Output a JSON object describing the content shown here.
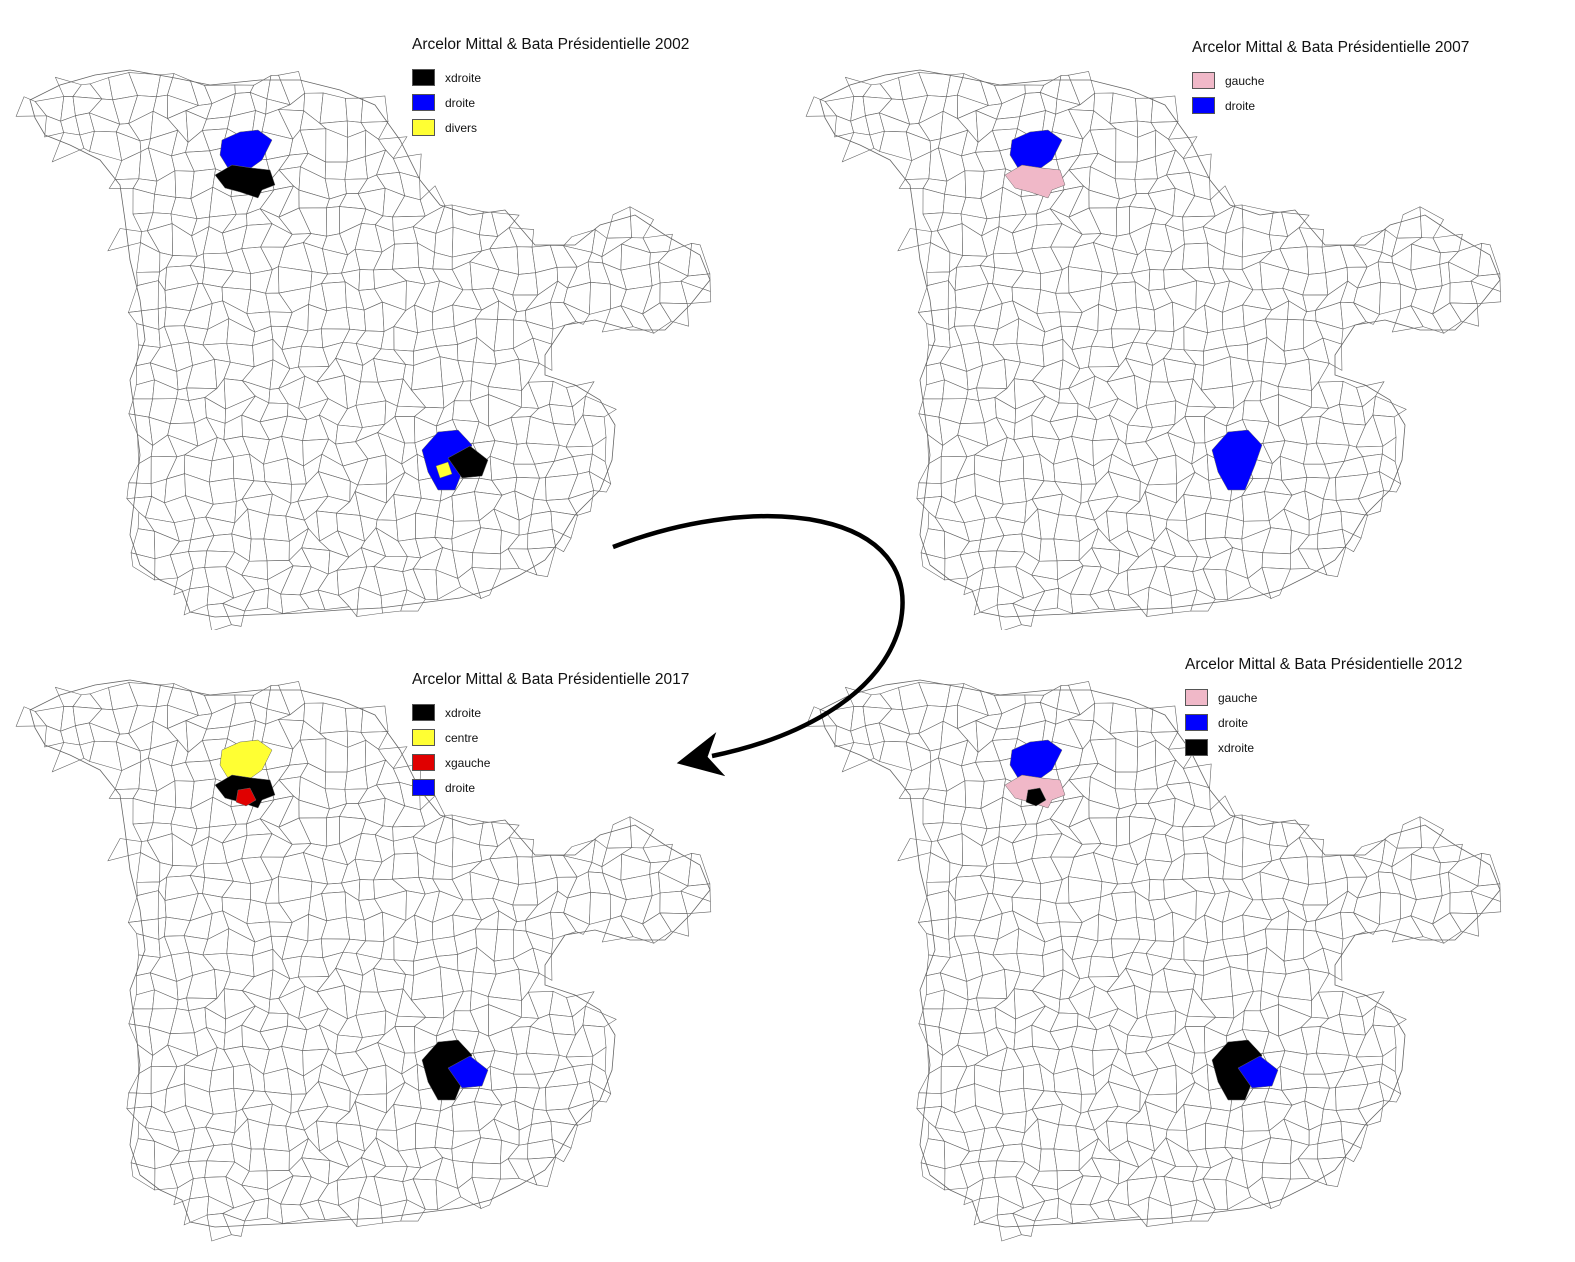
{
  "maps": [
    {
      "title": "Arcelor Mittal & Bata Présidentielle 2002",
      "legend": [
        {
          "label": "xdroite",
          "color": "#000000"
        },
        {
          "label": "droite",
          "color": "#0000ff"
        },
        {
          "label": "divers",
          "color": "#ffff33"
        }
      ],
      "highlights": {
        "north": [
          "droite",
          "xdroite"
        ],
        "south": [
          "droite",
          "xdroite",
          "divers"
        ]
      }
    },
    {
      "title": "Arcelor Mittal & Bata Présidentielle 2007",
      "legend": [
        {
          "label": "gauche",
          "color": "#f0b8c8"
        },
        {
          "label": "droite",
          "color": "#0000ff"
        }
      ],
      "highlights": {
        "north": [
          "droite",
          "gauche"
        ],
        "south": [
          "droite"
        ]
      }
    },
    {
      "title": "Arcelor Mittal & Bata Présidentielle 2017",
      "legend": [
        {
          "label": "xdroite",
          "color": "#000000"
        },
        {
          "label": "centre",
          "color": "#ffff33"
        },
        {
          "label": "xgauche",
          "color": "#e00000"
        },
        {
          "label": "droite",
          "color": "#0000ff"
        }
      ],
      "highlights": {
        "north": [
          "centre",
          "xdroite",
          "xgauche"
        ],
        "south": [
          "xdroite",
          "droite"
        ]
      }
    },
    {
      "title": "Arcelor Mittal & Bata Présidentielle 2012",
      "legend": [
        {
          "label": "gauche",
          "color": "#f0b8c8"
        },
        {
          "label": "droite",
          "color": "#0000ff"
        },
        {
          "label": "xdroite",
          "color": "#000000"
        }
      ],
      "highlights": {
        "north": [
          "droite",
          "gauche",
          "xdroite"
        ],
        "south": [
          "xdroite",
          "droite"
        ]
      }
    }
  ],
  "colors": {
    "commune_border": "#666666",
    "arrow": "#000000"
  }
}
